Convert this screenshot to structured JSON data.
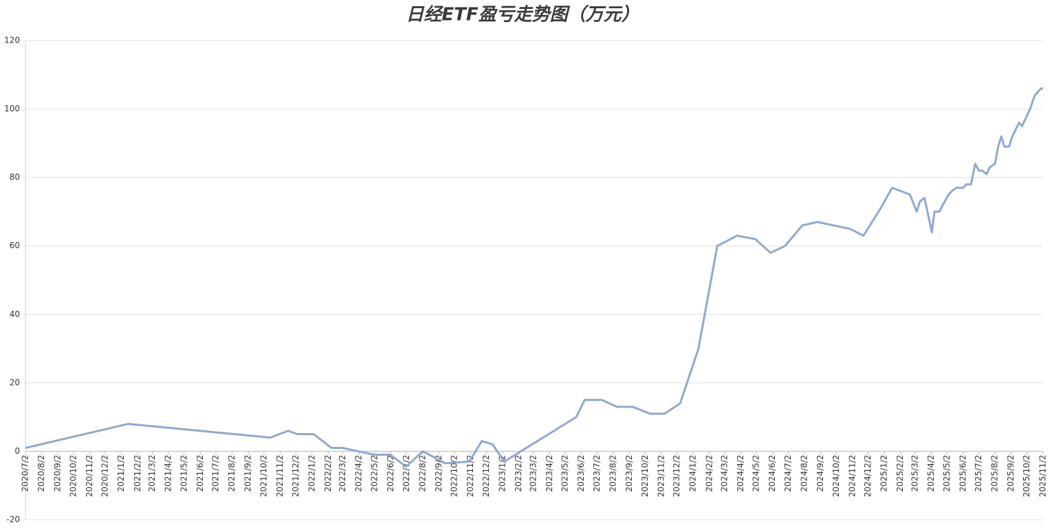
{
  "chart_data": {
    "type": "line",
    "title": "日经ETF盈亏走势图（万元）",
    "x": [
      "2020/7/2",
      "2021/1/15",
      "2021/10/14",
      "2021/11/17",
      "2021/12/5",
      "2022/1/5",
      "2022/2/8",
      "2022/3/1",
      "2022/5/1",
      "2022/6/1",
      "2022/7/1",
      "2022/8/2",
      "2022/9/14",
      "2022/10/30",
      "2022/11/23",
      "2022/12/14",
      "2023/1/5",
      "2023/5/23",
      "2023/6/8",
      "2023/7/11",
      "2023/8/9",
      "2023/9/8",
      "2023/10/11",
      "2023/11/8",
      "2023/12/8",
      "2024/1/12",
      "2024/2/17",
      "2024/3/26",
      "2024/4/30",
      "2024/5/29",
      "2024/6/26",
      "2024/7/29",
      "2024/8/27",
      "2024/10/28",
      "2024/11/23",
      "2024/12/26",
      "2025/1/17",
      "2025/2/20",
      "2025/2/28",
      "2025/3/5",
      "2025/3/11",
      "2025/3/20",
      "2025/4/3",
      "2025/4/8",
      "2025/4/17",
      "2025/5/5",
      "2025/5/11",
      "2025/5/20",
      "2025/6/2",
      "2025/6/8",
      "2025/6/17",
      "2025/6/25",
      "2025/7/2",
      "2025/7/8",
      "2025/7/17",
      "2025/7/23",
      "2025/8/2",
      "2025/8/8",
      "2025/8/14",
      "2025/8/20",
      "2025/8/29",
      "2025/9/4",
      "2025/9/17",
      "2025/9/23",
      "2025/10/8",
      "2025/10/17",
      "2025/10/29",
      "2025/11/2"
    ],
    "values": [
      1,
      8,
      4,
      6,
      5,
      5,
      1,
      1,
      -1,
      -1,
      -4.5,
      0,
      -3.5,
      -3,
      3,
      2,
      -3,
      10,
      15,
      15,
      13,
      13,
      11,
      11,
      14,
      30,
      60,
      63,
      62,
      58,
      60,
      66,
      67,
      65,
      63,
      71,
      77,
      75,
      72,
      70,
      73,
      74,
      64,
      70,
      70,
      75,
      76,
      77,
      77,
      78,
      78,
      84,
      82,
      82,
      81,
      83,
      84,
      89,
      92,
      89,
      89,
      92,
      96,
      95,
      100,
      104,
      106,
      106
    ],
    "color": "#8ea8d2",
    "xlim": [
      "2020/7/2",
      "2025/11/2"
    ],
    "xticks": [
      "2020/7/2",
      "2020/8/2",
      "2020/9/2",
      "2020/10/2",
      "2020/11/2",
      "2020/12/2",
      "2021/1/2",
      "2021/2/2",
      "2021/3/2",
      "2021/4/2",
      "2021/5/2",
      "2021/6/2",
      "2021/7/2",
      "2021/8/2",
      "2021/9/2",
      "2021/10/2",
      "2021/11/2",
      "2021/12/2",
      "2022/1/2",
      "2022/2/2",
      "2022/3/2",
      "2022/4/2",
      "2022/5/2",
      "2022/6/2",
      "2022/7/2",
      "2022/8/2",
      "2022/9/2",
      "2022/10/2",
      "2022/11/2",
      "2022/12/2",
      "2023/1/2",
      "2023/2/2",
      "2023/3/2",
      "2023/4/2",
      "2023/5/2",
      "2023/6/2",
      "2023/7/2",
      "2023/8/2",
      "2023/9/2",
      "2023/10/2",
      "2023/11/2",
      "2023/12/2",
      "2024/1/2",
      "2024/2/2",
      "2024/3/2",
      "2024/4/2",
      "2024/5/2",
      "2024/6/2",
      "2024/7/2",
      "2024/8/2",
      "2024/9/2",
      "2024/10/2",
      "2024/11/2",
      "2024/12/2",
      "2025/1/2",
      "2025/2/2",
      "2025/3/2",
      "2025/4/2",
      "2025/5/2",
      "2025/6/2",
      "2025/7/2",
      "2025/8/2",
      "2025/9/2",
      "2025/10/2",
      "2025/11/2"
    ],
    "ylim": [
      -20,
      120
    ],
    "yticks": [
      -20,
      0,
      20,
      40,
      60,
      80,
      100,
      120
    ],
    "grid": true
  }
}
